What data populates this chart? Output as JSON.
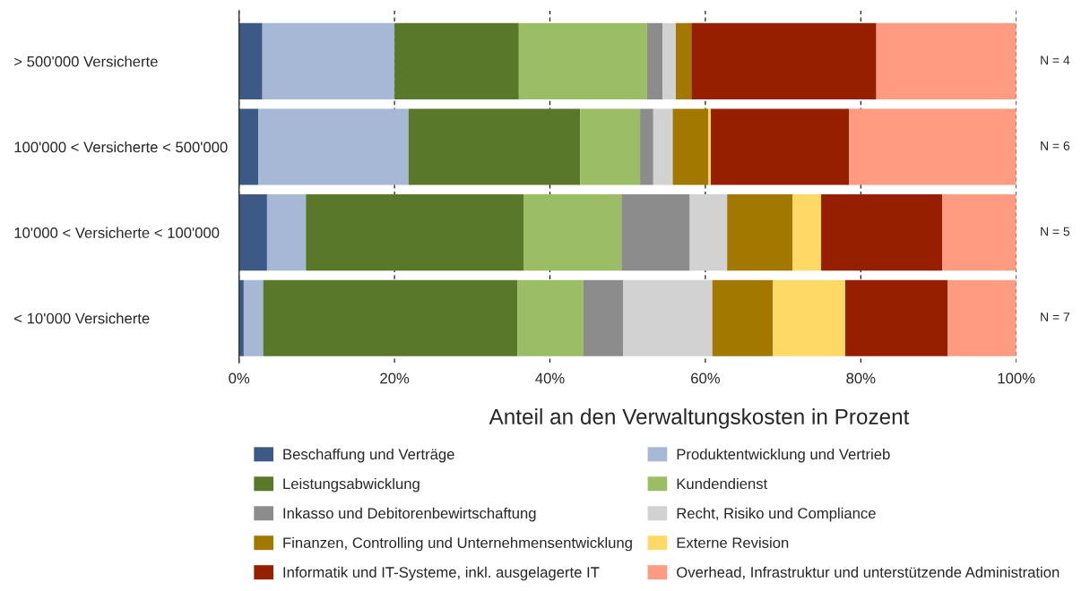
{
  "chart_data": {
    "type": "bar",
    "orientation": "horizontal",
    "stacked": true,
    "categories": [
      "> 500'000 Versicherte",
      "100'000 < Versicherte < 500'000",
      "10'000 < Versicherte < 100'000",
      "< 10'000 Versicherte"
    ],
    "xlabel": "Anteil an den Verwaltungskosten in Prozent",
    "xlim": [
      0,
      100
    ],
    "xticks": [
      {
        "value": 0,
        "label": "0%"
      },
      {
        "value": 20,
        "label": "20%"
      },
      {
        "value": 40,
        "label": "40%"
      },
      {
        "value": 60,
        "label": "60%"
      },
      {
        "value": 80,
        "label": "80%"
      },
      {
        "value": 100,
        "label": "100%"
      }
    ],
    "grid": "x",
    "legend": "bottom",
    "series": [
      {
        "name": "Beschaffung und Verträge",
        "color": "#3c5a85",
        "values": [
          3.0,
          2.5,
          3.6,
          0.6
        ]
      },
      {
        "name": "Produktentwicklung und Vertrieb",
        "color": "#a6b8d6",
        "values": [
          17.0,
          19.3,
          5.0,
          2.5
        ]
      },
      {
        "name": "Leistungsabwicklung",
        "color": "#5a7829",
        "values": [
          16.0,
          22.1,
          28.0,
          32.7
        ]
      },
      {
        "name": "Kundendienst",
        "color": "#9bbd66",
        "values": [
          16.5,
          7.7,
          12.6,
          8.5
        ]
      },
      {
        "name": "Inkasso und Debitorenbewirtschaftung",
        "color": "#8c8c8c",
        "values": [
          2.0,
          1.7,
          8.8,
          5.1
        ]
      },
      {
        "name": "Recht, Risiko und Compliance",
        "color": "#d2d2d2",
        "values": [
          1.7,
          2.5,
          4.8,
          11.5
        ]
      },
      {
        "name": "Finanzen, Controlling und Unternehmensentwicklung",
        "color": "#a37800",
        "values": [
          2.0,
          4.6,
          8.4,
          7.8
        ]
      },
      {
        "name": "Externe Revision",
        "color": "#ffd966",
        "values": [
          0,
          0.3,
          3.7,
          9.3
        ]
      },
      {
        "name": "Informatik und IT-Systeme, inkl. ausgelagerte IT",
        "color": "#961f00",
        "values": [
          23.8,
          17.8,
          15.6,
          13.2
        ]
      },
      {
        "name": "Overhead, Infrastruktur und unterstützende Administration",
        "color": "#ff9b80",
        "values": [
          18.0,
          21.5,
          9.5,
          8.8
        ]
      }
    ],
    "annotations": [
      "N = 4",
      "N = 6",
      "N = 5",
      "N = 7"
    ]
  }
}
